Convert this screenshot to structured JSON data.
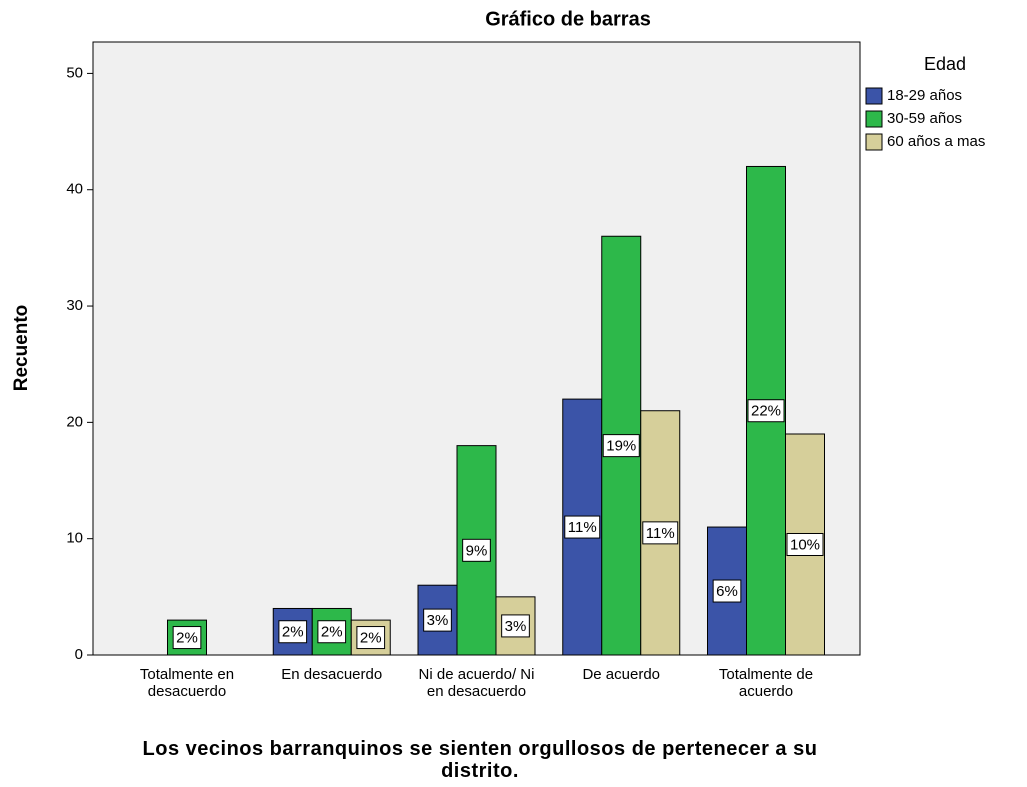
{
  "chart_data": {
    "type": "bar",
    "title": "Gráfico de barras",
    "y_label": "Recuento",
    "x_label": "Los vecinos barranquinos se sienten orgullosos de pertenecer a su distrito.",
    "legend_title": "Edad",
    "legend_position": "right",
    "categories": [
      "Totalmente en desacuerdo",
      "En desacuerdo",
      "Ni de acuerdo/ Ni en desacuerdo",
      "De acuerdo",
      "Totalmente de acuerdo"
    ],
    "series": [
      {
        "name": "18-29 años",
        "color": "#3b54a8",
        "values": [
          0,
          4,
          6,
          22,
          11
        ],
        "value_labels": [
          null,
          "2%",
          "3%",
          "11%",
          "6%"
        ]
      },
      {
        "name": "30-59 años",
        "color": "#2db84a",
        "values": [
          3,
          4,
          18,
          36,
          42
        ],
        "value_labels": [
          "2%",
          "2%",
          "9%",
          "19%",
          "22%"
        ]
      },
      {
        "name": "60 años a mas",
        "color": "#d6cf9a",
        "values": [
          0,
          3,
          5,
          21,
          19
        ],
        "value_labels": [
          null,
          "2%",
          "3%",
          "11%",
          "10%"
        ]
      }
    ],
    "ylim": [
      0,
      52.7
    ],
    "yticks": [
      0,
      10,
      20,
      30,
      40,
      50
    ]
  }
}
